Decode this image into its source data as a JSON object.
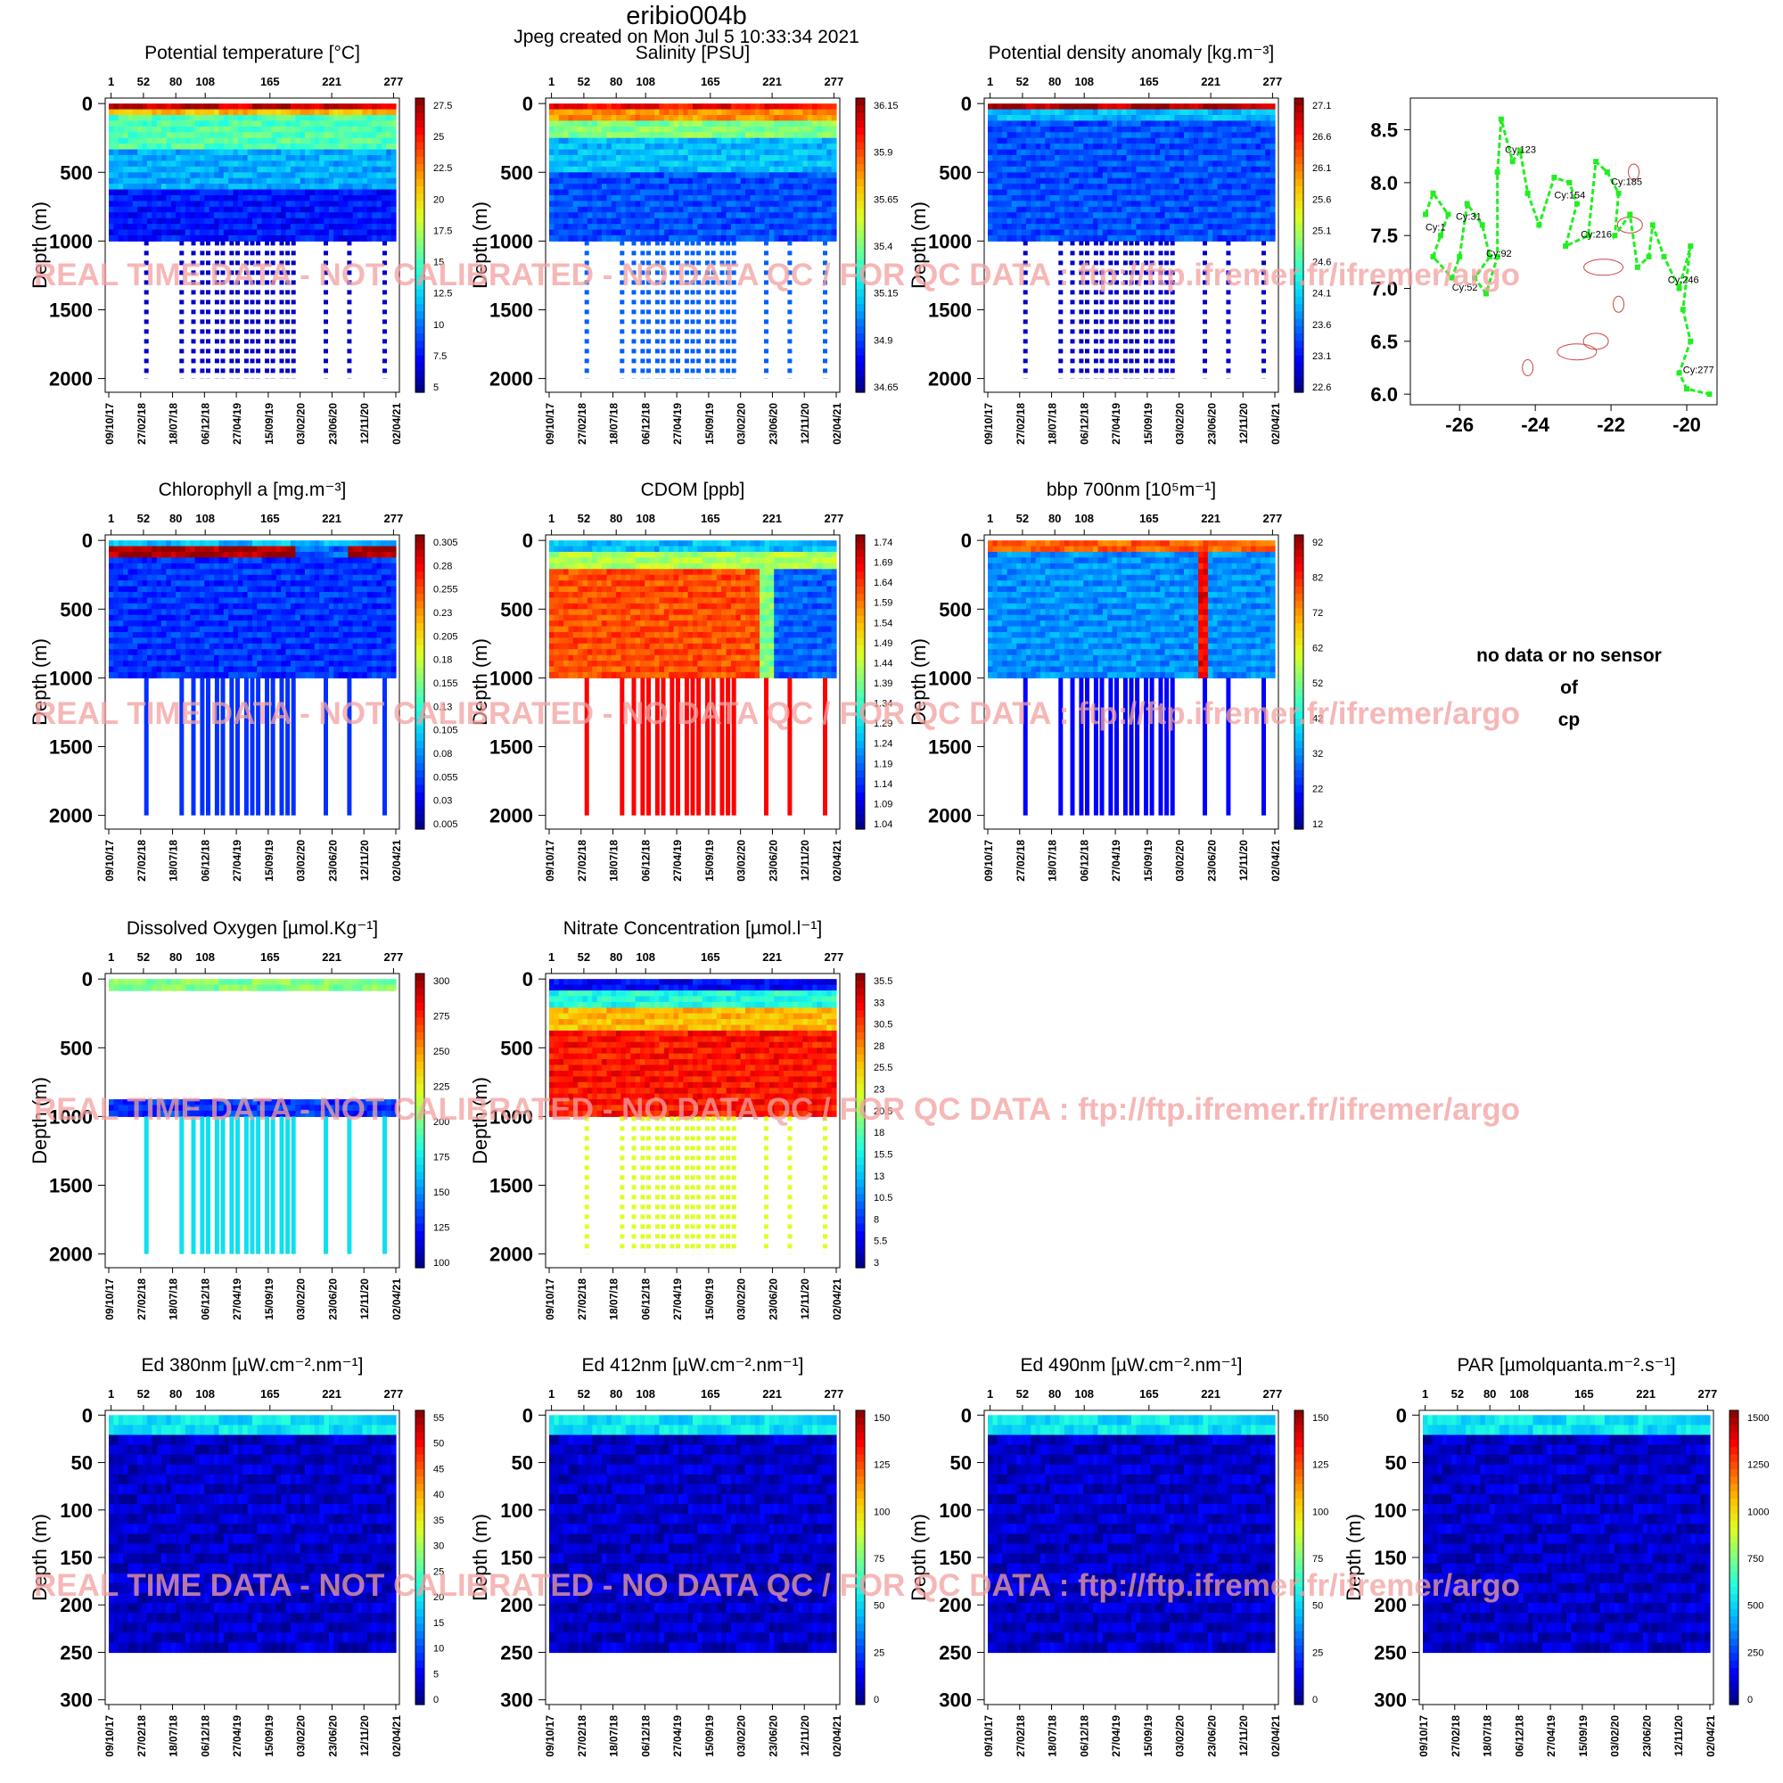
{
  "header": {
    "title": "eribio004b",
    "subtitle": "Jpeg created on  Mon Jul  5 10:33:34 2021"
  },
  "watermark": "REAL TIME DATA - NOT CALIBRATED - NO DATA QC  /  FOR QC DATA : ftp://ftp.ifremer.fr/ifremer/argo",
  "no_sensor": [
    "no data or no sensor",
    "of",
    "cp"
  ],
  "axes": {
    "ylabel": "Depth (m)",
    "cycle_ticks": [
      "1",
      "52",
      "80",
      "108",
      "165",
      "221",
      "277"
    ],
    "date_ticks": [
      "09/10/17",
      "27/02/18",
      "18/07/18",
      "06/12/18",
      "27/04/19",
      "15/09/19",
      "03/02/20",
      "23/06/20",
      "12/11/20",
      "02/04/21"
    ],
    "depth_ticks_deep": [
      "0",
      "500",
      "1000",
      "1500",
      "2000"
    ],
    "depth_ticks_shallow": [
      "0",
      "50",
      "100",
      "150",
      "200",
      "250",
      "300"
    ]
  },
  "colors": {
    "green_track": "#22ee22",
    "contour": "#cc4444",
    "watermark": "#f4a0a0"
  },
  "chart_data": [
    {
      "type": "heatmap",
      "title": "Potential temperature [°C]",
      "ylabel": "Depth (m)",
      "ylim": [
        2100,
        -40
      ],
      "colorbar": [
        "27.5",
        "25",
        "22.5",
        "20",
        "17.5",
        "15",
        "12.5",
        "10",
        "7.5",
        "5"
      ],
      "profile_max_depth": 1000,
      "deep_profiles_to": 2000,
      "palette": "temp",
      "data_coverage": "full-to-1000"
    },
    {
      "type": "heatmap",
      "title": "Salinity [PSU]",
      "ylabel": "Depth (m)",
      "ylim": [
        2100,
        -40
      ],
      "colorbar": [
        "36.15",
        "35.9",
        "35.65",
        "35.4",
        "35.15",
        "34.9",
        "34.65"
      ],
      "profile_max_depth": 1000,
      "deep_profiles_to": 2000,
      "palette": "sal",
      "data_coverage": "full-to-1000"
    },
    {
      "type": "heatmap",
      "title": "Potential density anomaly [kg.m⁻³]",
      "ylabel": "Depth (m)",
      "ylim": [
        2100,
        -40
      ],
      "colorbar": [
        "27.1",
        "26.6",
        "26.1",
        "25.6",
        "25.1",
        "24.6",
        "24.1",
        "23.6",
        "23.1",
        "22.6"
      ],
      "profile_max_depth": 1000,
      "deep_profiles_to": 2000,
      "palette": "dens",
      "data_coverage": "full-to-1000"
    },
    {
      "type": "scatter",
      "title": "",
      "xlabel": "",
      "ylabel": "",
      "xlim": [
        -27.3,
        -19.2
      ],
      "ylim": [
        5.9,
        8.8
      ],
      "xticks": [
        "-26",
        "-24",
        "-22",
        "-20"
      ],
      "yticks": [
        "8.5",
        "8.0",
        "7.5",
        "7.0",
        "6.5",
        "6.0"
      ],
      "labels": [
        {
          "text": "Cy:1",
          "x": -26.9,
          "y": 7.55
        },
        {
          "text": "Cy:31",
          "x": -26.1,
          "y": 7.65
        },
        {
          "text": "Cy:52",
          "x": -26.2,
          "y": 6.98
        },
        {
          "text": "Cy:92",
          "x": -25.3,
          "y": 7.3
        },
        {
          "text": "Cy:123",
          "x": -24.8,
          "y": 8.28
        },
        {
          "text": "Cy:154",
          "x": -23.5,
          "y": 7.85
        },
        {
          "text": "Cy:185",
          "x": -22,
          "y": 7.98
        },
        {
          "text": "Cy:216",
          "x": -22.8,
          "y": 7.48
        },
        {
          "text": "Cy:246",
          "x": -20.5,
          "y": 7.05
        },
        {
          "text": "Cy:277",
          "x": -20.1,
          "y": 6.2
        }
      ],
      "track": [
        [
          -26.9,
          7.7
        ],
        [
          -26.7,
          7.9
        ],
        [
          -26.3,
          7.7
        ],
        [
          -26.5,
          7.5
        ],
        [
          -26.7,
          7.3
        ],
        [
          -26.2,
          7.1
        ],
        [
          -26,
          7.3
        ],
        [
          -25.8,
          7.8
        ],
        [
          -25.4,
          7.6
        ],
        [
          -25.2,
          7.3
        ],
        [
          -25.6,
          7.1
        ],
        [
          -25.3,
          6.95
        ],
        [
          -25,
          7.3
        ],
        [
          -25,
          8.1
        ],
        [
          -24.9,
          8.6
        ],
        [
          -24.6,
          8.2
        ],
        [
          -24.4,
          8.3
        ],
        [
          -24.2,
          7.9
        ],
        [
          -23.9,
          7.6
        ],
        [
          -23.5,
          8.05
        ],
        [
          -23.1,
          8
        ],
        [
          -22.9,
          7.8
        ],
        [
          -23.2,
          7.4
        ],
        [
          -22.6,
          7.5
        ],
        [
          -22.4,
          8.2
        ],
        [
          -22.1,
          8.1
        ],
        [
          -21.8,
          7.9
        ],
        [
          -21.9,
          7.5
        ],
        [
          -21.5,
          7.7
        ],
        [
          -21.3,
          7.2
        ],
        [
          -21,
          7.3
        ],
        [
          -20.9,
          7.6
        ],
        [
          -20.6,
          7.3
        ],
        [
          -20.2,
          7
        ],
        [
          -19.9,
          7.4
        ],
        [
          -20.1,
          6.8
        ],
        [
          -19.9,
          6.5
        ],
        [
          -20.2,
          6.2
        ],
        [
          -20,
          6.05
        ],
        [
          -19.4,
          6
        ]
      ]
    },
    {
      "type": "heatmap",
      "title": "Chlorophyll a [mg.m⁻³]",
      "ylabel": "Depth (m)",
      "ylim": [
        2100,
        -40
      ],
      "colorbar": [
        "0.305",
        "0.28",
        "0.255",
        "0.23",
        "0.205",
        "0.18",
        "0.155",
        "0.13",
        "0.105",
        "0.08",
        "0.055",
        "0.03",
        "0.005"
      ],
      "profile_max_depth": 1000,
      "deep_profiles_to": 2000,
      "palette": "chl",
      "data_coverage": "full-to-1000"
    },
    {
      "type": "heatmap",
      "title": "CDOM  [ppb]",
      "ylabel": "Depth (m)",
      "ylim": [
        2100,
        -40
      ],
      "colorbar": [
        "1.74",
        "1.69",
        "1.64",
        "1.59",
        "1.54",
        "1.49",
        "1.44",
        "1.39",
        "1.34",
        "1.29",
        "1.24",
        "1.19",
        "1.14",
        "1.09",
        "1.04"
      ],
      "profile_max_depth": 1000,
      "deep_profiles_to": 2000,
      "palette": "cdom",
      "data_coverage": "full-to-1000"
    },
    {
      "type": "heatmap",
      "title": "bbp 700nm [10⁵m⁻¹]",
      "ylabel": "Depth (m)",
      "ylim": [
        2100,
        -40
      ],
      "colorbar": [
        "92",
        "82",
        "72",
        "62",
        "52",
        "42",
        "32",
        "22",
        "12"
      ],
      "profile_max_depth": 1000,
      "deep_profiles_to": 2000,
      "palette": "bbp",
      "data_coverage": "full-to-1000"
    },
    {
      "type": "heatmap",
      "title": "Dissolved Oxygen [µmol.Kg⁻¹]",
      "ylabel": "Depth (m)",
      "ylim": [
        2100,
        -40
      ],
      "colorbar": [
        "300",
        "275",
        "250",
        "225",
        "200",
        "175",
        "150",
        "125",
        "100"
      ],
      "profile_max_depth": 1000,
      "deep_profiles_to": 2000,
      "palette": "oxy",
      "data_coverage": "gappy"
    },
    {
      "type": "heatmap",
      "title": "Nitrate Concentration [µmol.l⁻¹]",
      "ylabel": "Depth (m)",
      "ylim": [
        2100,
        -40
      ],
      "colorbar": [
        "35.5",
        "33",
        "30.5",
        "28",
        "25.5",
        "23",
        "20.5",
        "18",
        "15.5",
        "13",
        "10.5",
        "8",
        "5.5",
        "3"
      ],
      "profile_max_depth": 1000,
      "deep_profiles_to": 2000,
      "palette": "nit",
      "data_coverage": "full-to-1000"
    },
    {
      "type": "heatmap",
      "title": "Ed 380nm [µW.cm⁻².nm⁻¹]",
      "ylabel": "Depth (m)",
      "ylim": [
        305,
        -5
      ],
      "colorbar": [
        "55",
        "50",
        "45",
        "40",
        "35",
        "30",
        "25",
        "20",
        "15",
        "10",
        "5",
        "0"
      ],
      "profile_max_depth": 250,
      "palette": "ed",
      "data_coverage": "full-to-250"
    },
    {
      "type": "heatmap",
      "title": "Ed 412nm [µW.cm⁻².nm⁻¹]",
      "ylabel": "Depth (m)",
      "ylim": [
        305,
        -5
      ],
      "colorbar": [
        "150",
        "125",
        "100",
        "75",
        "50",
        "25",
        "0"
      ],
      "profile_max_depth": 250,
      "palette": "ed",
      "data_coverage": "full-to-250"
    },
    {
      "type": "heatmap",
      "title": "Ed 490nm [µW.cm⁻².nm⁻¹]",
      "ylabel": "Depth (m)",
      "ylim": [
        305,
        -5
      ],
      "colorbar": [
        "150",
        "125",
        "100",
        "75",
        "50",
        "25",
        "0"
      ],
      "profile_max_depth": 250,
      "palette": "ed",
      "data_coverage": "full-to-250"
    },
    {
      "type": "heatmap",
      "title": "PAR [µmolquanta.m⁻².s⁻¹]",
      "ylabel": "Depth (m)",
      "ylim": [
        305,
        -5
      ],
      "colorbar": [
        "1500",
        "1250",
        "1000",
        "750",
        "500",
        "250",
        "0"
      ],
      "profile_max_depth": 250,
      "palette": "ed",
      "data_coverage": "full-to-250"
    }
  ]
}
